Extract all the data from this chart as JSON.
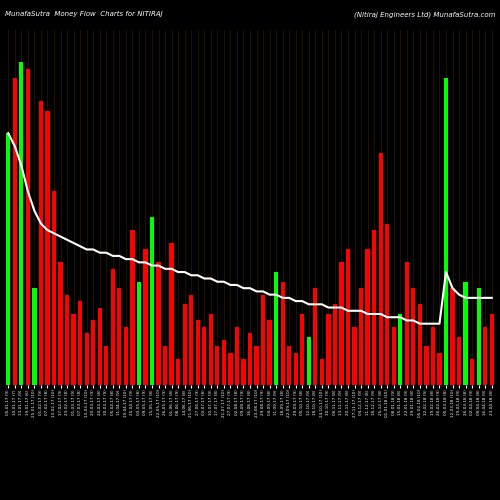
{
  "title_left": "MunafaSutra  Money Flow  Charts for NITIRAJ",
  "title_right": "(Nitiraj Engineers Ltd) MunafaSutra.com",
  "bg": "#000000",
  "red": "#ff0000",
  "green": "#00ff00",
  "white": "#ffffff",
  "grid_col": "#2a1500",
  "bar_colors": [
    "g",
    "r",
    "g",
    "r",
    "g",
    "r",
    "r",
    "r",
    "r",
    "r",
    "r",
    "r",
    "r",
    "r",
    "r",
    "r",
    "r",
    "r",
    "r",
    "r",
    "g",
    "r",
    "g",
    "r",
    "r",
    "r",
    "r",
    "r",
    "r",
    "r",
    "r",
    "r",
    "r",
    "r",
    "r",
    "r",
    "r",
    "r",
    "r",
    "r",
    "r",
    "g",
    "r",
    "r",
    "r",
    "r",
    "g",
    "r",
    "r",
    "r",
    "r",
    "r",
    "r",
    "r",
    "r",
    "r",
    "r",
    "r",
    "r",
    "r",
    "g",
    "r",
    "r",
    "r",
    "r",
    "r",
    "r",
    "g",
    "r",
    "r",
    "g",
    "r",
    "g",
    "r",
    "r"
  ],
  "bar_heights": [
    78,
    95,
    100,
    98,
    30,
    88,
    85,
    60,
    38,
    28,
    22,
    26,
    16,
    20,
    24,
    12,
    36,
    30,
    18,
    48,
    32,
    42,
    52,
    38,
    12,
    44,
    8,
    25,
    28,
    20,
    18,
    22,
    12,
    14,
    10,
    18,
    8,
    16,
    12,
    28,
    20,
    35,
    32,
    12,
    10,
    22,
    15,
    30,
    8,
    22,
    25,
    38,
    42,
    18,
    30,
    42,
    48,
    72,
    50,
    18,
    22,
    38,
    30,
    25,
    12,
    18,
    10,
    95,
    30,
    15,
    32,
    8,
    30,
    18,
    22
  ],
  "line_y": [
    78,
    74,
    68,
    60,
    54,
    50,
    48,
    47,
    46,
    45,
    44,
    43,
    42,
    42,
    41,
    41,
    40,
    40,
    39,
    39,
    38,
    38,
    37,
    37,
    36,
    36,
    35,
    35,
    34,
    34,
    33,
    33,
    32,
    32,
    31,
    31,
    30,
    30,
    29,
    29,
    28,
    28,
    27,
    27,
    26,
    26,
    25,
    25,
    25,
    24,
    24,
    24,
    23,
    23,
    23,
    22,
    22,
    22,
    21,
    21,
    21,
    20,
    20,
    19,
    19,
    19,
    19,
    35,
    30,
    28,
    27,
    27,
    27,
    27,
    27
  ],
  "xlabels": [
    "05-01-17 (9)",
    "10-01-17 (7)",
    "13-01-17 (9)",
    "19-01-17 (6)",
    "25-01-17 (10)",
    "01-02-17 (9)",
    "07-02-17 (8)",
    "13-02-17 (10)",
    "17-02-17 (9)",
    "23-02-17 (8)",
    "01-03-17 (9)",
    "07-03-17 (8)",
    "13-03-17 (10)",
    "20-03-17 (9)",
    "24-03-17 (8)",
    "30-03-17 (9)",
    "05-04-17 (8)",
    "11-04-17 (9)",
    "19-04-17 (10)",
    "25-04-17 (9)",
    "03-05-17 (8)",
    "09-05-17 (9)",
    "15-05-17 (8)",
    "22-05-17 (10)",
    "26-05-17 (9)",
    "01-06-17 (8)",
    "08-06-17 (9)",
    "14-06-17 (8)",
    "21-06-17 (10)",
    "27-06-17 (9)",
    "03-07-17 (8)",
    "10-07-17 (9)",
    "17-07-17 (8)",
    "21-07-17 (10)",
    "27-07-17 (9)",
    "02-08-17 (8)",
    "09-08-17 (9)",
    "16-08-17 (8)",
    "23-08-17 (10)",
    "29-08-17 (9)",
    "04-09-17 (8)",
    "11-09-17 (9)",
    "18-09-17 (8)",
    "22-09-17 (10)",
    "29-09-17 (9)",
    "05-10-17 (8)",
    "12-10-17 (9)",
    "18-10-17 (8)",
    "24-10-17 (10)",
    "30-10-17 (9)",
    "06-11-17 (8)",
    "13-11-17 (9)",
    "20-11-17 (8)",
    "27-11-17 (10)",
    "04-12-17 (9)",
    "11-12-17 (8)",
    "18-12-17 (9)",
    "25-12-17 (8)",
    "01-01-18 (10)",
    "08-01-18 (9)",
    "15-01-18 (8)",
    "22-01-18 (9)",
    "29-01-18 (8)",
    "05-02-18 (10)",
    "12-02-18 (9)",
    "19-02-18 (8)",
    "26-02-18 (9)",
    "05-03-18 (8)",
    "12-03-18 (10)",
    "19-03-18 (9)",
    "26-03-18 (8)",
    "02-04-18 (9)",
    "09-04-18 (8)",
    "16-04-18 (9)",
    "23-04-18 (8)"
  ],
  "ylim": [
    0,
    110
  ],
  "figsize": [
    5.0,
    5.0
  ],
  "dpi": 100
}
